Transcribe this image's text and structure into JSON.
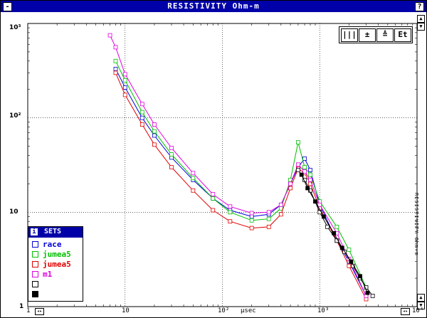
{
  "window": {
    "title": "RESISTIVITY Ohm-m",
    "sys_menu": "-",
    "help": "?"
  },
  "toolbar": {
    "btn1": "|||",
    "btn2": "±",
    "btn3": "≜",
    "btn4": "Et"
  },
  "axes": {
    "x_label": "μsec",
    "y_label_right": "RESISTIVITY Ohm-m",
    "x_ticks": [
      "1",
      "10",
      "10²",
      "10³",
      "10⁴"
    ],
    "y_ticks": [
      "10³",
      "10²",
      "10",
      "1"
    ]
  },
  "legend": {
    "title": "SETS",
    "icon": "i",
    "items": [
      {
        "label": "race",
        "color": "#0000d8",
        "marker": "▲"
      },
      {
        "label": "jumea5",
        "color": "#00c000",
        "marker": "+"
      },
      {
        "label": "jumea5",
        "color": "#e00000",
        "marker": "▼"
      },
      {
        "label": "m1",
        "color": "#e000e0",
        "marker": "="
      },
      {
        "label": "",
        "color": "#000000",
        "marker": "□"
      },
      {
        "label": "",
        "color": "#000000",
        "marker": "■"
      }
    ]
  },
  "chart_data": {
    "type": "line",
    "xscale": "log",
    "yscale": "log",
    "xlim": [
      1,
      10000
    ],
    "ylim": [
      1,
      1000
    ],
    "xlabel": "μsec",
    "ylabel": "RESISTIVITY Ohm-m",
    "grid": true,
    "series": [
      {
        "name": "race",
        "color": "#0000d8",
        "x": [
          8,
          10,
          15,
          20,
          30,
          50,
          80,
          120,
          200,
          300,
          400,
          500,
          600,
          700,
          800,
          1000,
          1500,
          2000,
          3000
        ],
        "y": [
          330,
          210,
          100,
          65,
          38,
          22,
          14,
          10.5,
          9,
          9.5,
          12,
          20,
          30,
          37,
          28,
          12,
          5,
          3,
          1.3
        ]
      },
      {
        "name": "jumea5",
        "color": "#00c000",
        "x": [
          8,
          10,
          15,
          20,
          30,
          50,
          80,
          120,
          200,
          300,
          400,
          500,
          600,
          700,
          800,
          1000,
          1500,
          2000,
          3000
        ],
        "y": [
          400,
          250,
          115,
          72,
          41,
          23,
          14,
          10,
          8.2,
          8.5,
          11,
          22,
          55,
          30,
          25,
          13,
          7,
          4,
          1.6
        ]
      },
      {
        "name": "jumea5",
        "color": "#e00000",
        "x": [
          8,
          10,
          15,
          20,
          30,
          50,
          80,
          120,
          200,
          300,
          400,
          500,
          600,
          700,
          800,
          1000,
          1500,
          2000,
          3000
        ],
        "y": [
          300,
          175,
          85,
          52,
          30,
          17,
          10.5,
          8,
          6.8,
          7,
          9.5,
          18,
          29,
          26,
          20,
          11,
          5,
          2.7,
          1.2
        ]
      },
      {
        "name": "m1",
        "color": "#e000e0",
        "x": [
          7,
          8,
          10,
          15,
          20,
          30,
          50,
          80,
          120,
          200,
          300,
          400,
          500,
          600,
          700,
          800,
          1000,
          1500,
          2000,
          3000
        ],
        "y": [
          750,
          560,
          290,
          140,
          85,
          48,
          26,
          15.5,
          11.5,
          9.8,
          10,
          12,
          20,
          32,
          27,
          22,
          12,
          6,
          3.2,
          1.3
        ]
      },
      {
        "name": "",
        "color": "#000000",
        "x": [
          600,
          700,
          800,
          1000,
          1200,
          1500,
          1800,
          2200,
          2600,
          3000,
          3500
        ],
        "y": [
          28,
          22,
          17,
          10,
          7,
          5,
          3.8,
          2.7,
          2,
          1.6,
          1.3
        ]
      },
      {
        "name": "",
        "color": "#000000",
        "x": [
          650,
          750,
          900,
          1100,
          1400,
          1700,
          2100,
          2600,
          3100
        ],
        "y": [
          25,
          18,
          13,
          9,
          6,
          4.2,
          3,
          2.1,
          1.4
        ]
      }
    ]
  }
}
